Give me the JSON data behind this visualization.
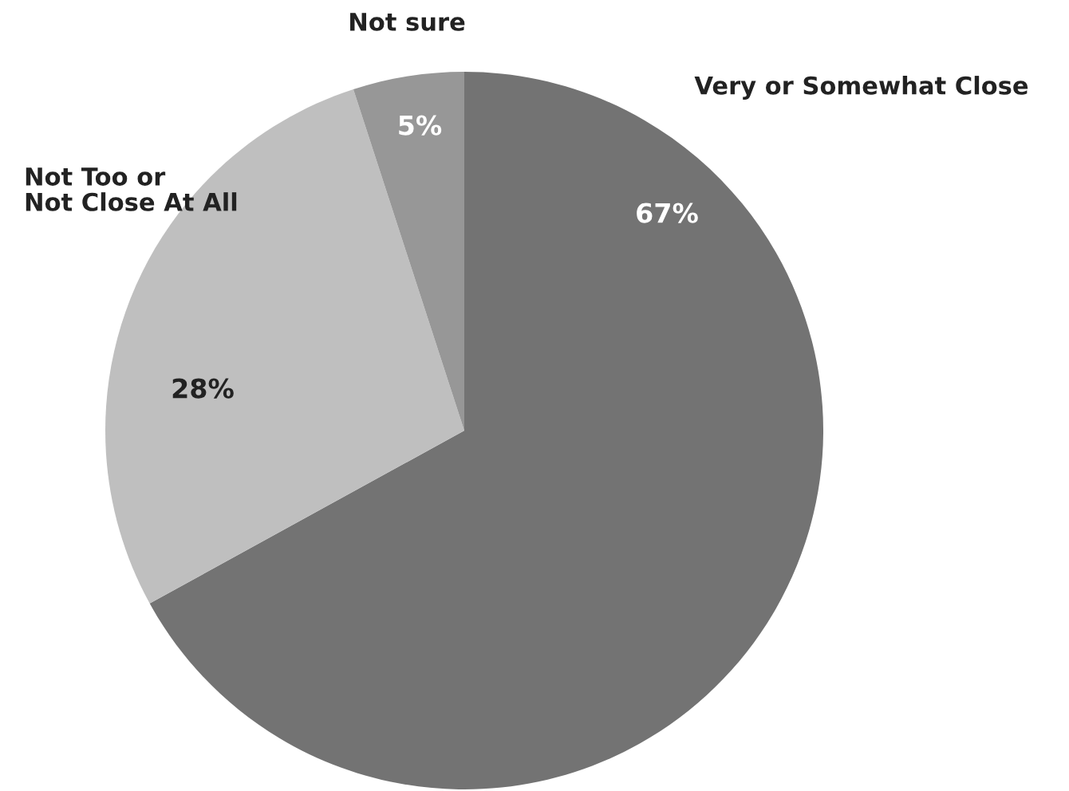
{
  "chart_data": {
    "type": "pie",
    "categories": [
      "Very or Somewhat Close",
      "Not Too or\nNot Close At All",
      "Not sure"
    ],
    "values": [
      67,
      28,
      5
    ],
    "colors": [
      "#737373",
      "#bfbfbf",
      "#979797"
    ],
    "value_labels": [
      "67%",
      "28%",
      "5%"
    ],
    "legend": false
  }
}
